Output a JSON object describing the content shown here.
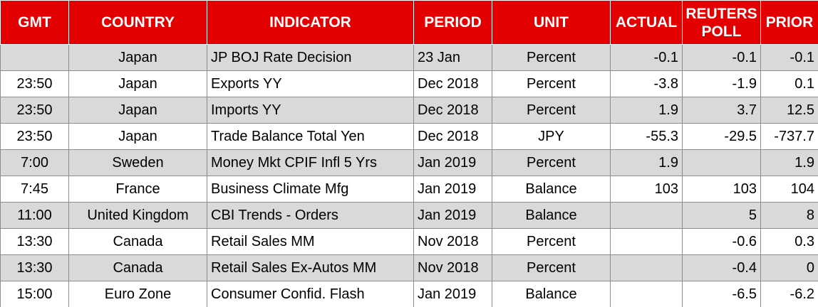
{
  "table": {
    "header": [
      "GMT",
      "COUNTRY",
      "INDICATOR",
      "PERIOD",
      "UNIT",
      "ACTUAL",
      "REUTERS POLL",
      "PRIOR"
    ],
    "rows": [
      [
        null,
        "Japan",
        "JP BOJ Rate Decision",
        "23 Jan",
        "Percent",
        -0.1,
        -0.1,
        -0.1
      ],
      [
        "23:50",
        "Japan",
        "Exports YY",
        "Dec 2018",
        "Percent",
        -3.8,
        -1.9,
        0.1
      ],
      [
        "23:50",
        "Japan",
        "Imports YY",
        "Dec 2018",
        "Percent",
        1.9,
        3.7,
        12.5
      ],
      [
        "23:50",
        "Japan",
        "Trade Balance Total Yen",
        "Dec 2018",
        "JPY",
        -55.3,
        -29.5,
        -737.7
      ],
      [
        "7:00",
        "Sweden",
        "Money Mkt CPIF Infl 5 Yrs",
        "Jan 2019",
        "Percent",
        1.9,
        null,
        1.9
      ],
      [
        "7:45",
        "France",
        "Business Climate Mfg",
        "Jan 2019",
        "Balance",
        103,
        103,
        104
      ],
      [
        "11:00",
        "United Kingdom",
        "CBI Trends - Orders",
        "Jan 2019",
        "Balance",
        null,
        5,
        8
      ],
      [
        "13:30",
        "Canada",
        "Retail Sales MM",
        "Nov 2018",
        "Percent",
        null,
        -0.6,
        0.3
      ],
      [
        "13:30",
        "Canada",
        "Retail Sales Ex-Autos MM",
        "Nov 2018",
        "Percent",
        null,
        -0.4,
        0
      ],
      [
        "15:00",
        "Euro Zone",
        "Consumer Confid. Flash",
        "Jan 2019",
        "Balance",
        null,
        -6.5,
        -6.2
      ]
    ]
  }
}
